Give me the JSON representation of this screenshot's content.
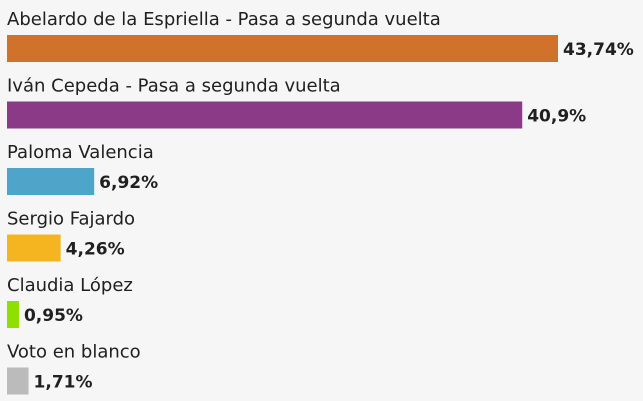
{
  "chart_data": {
    "type": "hbar",
    "categories": [
      "Abelardo de la Espriella - Pasa a segunda vuelta",
      "Iván Cepeda - Pasa a segunda vuelta",
      "Paloma Valencia",
      "Sergio Fajardo",
      "Claudia López",
      "Voto en blanco"
    ],
    "values": [
      43.74,
      40.9,
      6.92,
      4.26,
      0.95,
      1.71
    ],
    "value_labels": [
      "43,74%",
      "40,9%",
      "6,92%",
      "4,26%",
      "0,95%",
      "1,71%"
    ],
    "colors": [
      "#d0722a",
      "#8a3a86",
      "#4ea4c9",
      "#f4b520",
      "#8fe000",
      "#bbbbbb"
    ]
  }
}
